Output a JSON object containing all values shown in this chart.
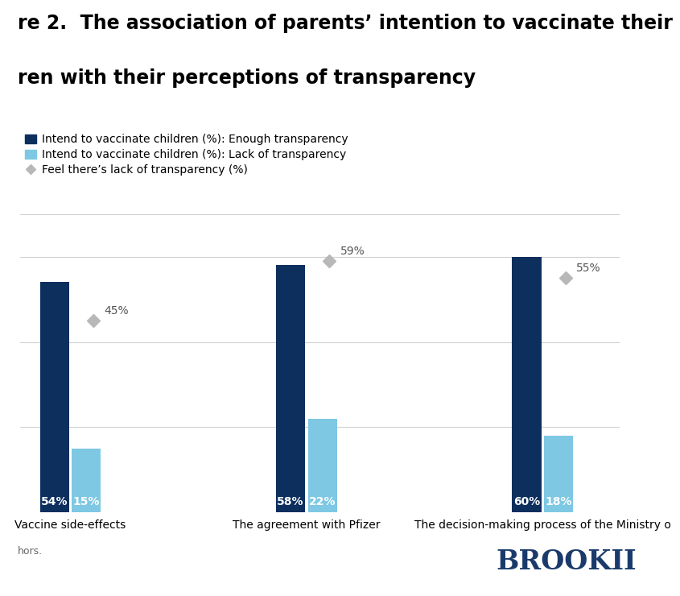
{
  "title_line1": "re 2.  The association of parents’ intention to vaccinate their",
  "title_line2": "ren with their perceptions of transparency",
  "categories": [
    "Vaccine side-effects",
    "The agreement with Pfizer",
    "The decision-making process of the Ministry o"
  ],
  "dark_blue_values": [
    54,
    58,
    60
  ],
  "light_blue_values": [
    15,
    22,
    18
  ],
  "diamond_values": [
    45,
    59,
    55
  ],
  "dark_blue_color": "#0d2f5e",
  "light_blue_color": "#7ec8e3",
  "diamond_color": "#b8b8b8",
  "legend_labels": [
    "Intend to vaccinate children (%): Enough transparency",
    "Intend to vaccinate children (%): Lack of transparency",
    "Feel there’s lack of transparency (%)"
  ],
  "ylim": [
    0,
    70
  ],
  "bar_width": 0.32,
  "background_color": "#ffffff",
  "grid_color": "#d0d0d0",
  "title_fontsize": 17,
  "legend_fontsize": 10,
  "tick_fontsize": 10,
  "annotation_fontsize": 10,
  "footer_text": "hors.",
  "brookings_text": "BROOKII"
}
